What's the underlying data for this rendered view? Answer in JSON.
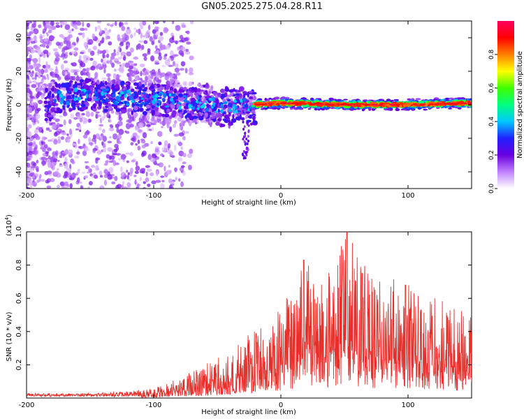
{
  "title": "GN05.2025.275.04.28.R11",
  "chart_data": [
    {
      "type": "heatmap",
      "xlabel": "Height of straight line (km)",
      "ylabel": "Frequency (Hz)",
      "xlim": [
        -200,
        150
      ],
      "ylim": [
        -50,
        50
      ],
      "xticks": [
        -200,
        -100,
        0,
        100
      ],
      "yticks": [
        -40,
        -20,
        0,
        20,
        40
      ],
      "grid": false,
      "colorbar": {
        "label": "Normalized spectral amplitude",
        "range": [
          0,
          1
        ],
        "ticks": [
          "0.0",
          "0.2",
          "0.4",
          "0.6",
          "0.8"
        ],
        "colors": [
          "#ffffff",
          "#c080ff",
          "#6a00e0",
          "#2020ff",
          "#00c8ff",
          "#00ff80",
          "#40ff00",
          "#ffff00",
          "#ff8000",
          "#ff0000",
          "#ff0060"
        ]
      },
      "ridge": [
        {
          "x": -180,
          "y": 4
        },
        {
          "x": -150,
          "y": 6
        },
        {
          "x": -120,
          "y": 4
        },
        {
          "x": -100,
          "y": 3
        },
        {
          "x": -80,
          "y": 2
        },
        {
          "x": -60,
          "y": 0
        },
        {
          "x": -40,
          "y": -1
        },
        {
          "x": -25,
          "y": -1
        },
        {
          "x": -20,
          "y": 0
        },
        {
          "x": 0,
          "y": 1
        },
        {
          "x": 50,
          "y": 0
        },
        {
          "x": 100,
          "y": 0
        },
        {
          "x": 150,
          "y": 1
        }
      ]
    },
    {
      "type": "line",
      "xlabel": "Height of straight line (km)",
      "ylabel": "SNR (10 * v/v)",
      "yscale_label": "(x10",
      "yscale_exp": "4",
      "yscale_close": ")",
      "xlim": [
        -200,
        150
      ],
      "ylim": [
        0,
        1.0
      ],
      "xticks": [
        -200,
        -100,
        0,
        100
      ],
      "yticks": [
        "0.2",
        "0.4",
        "0.6",
        "0.8",
        "1.0"
      ],
      "color": "#e8302a",
      "envelope": [
        {
          "x": -200,
          "y": 0.02
        },
        {
          "x": -160,
          "y": 0.02
        },
        {
          "x": -120,
          "y": 0.03
        },
        {
          "x": -100,
          "y": 0.06
        },
        {
          "x": -80,
          "y": 0.12
        },
        {
          "x": -60,
          "y": 0.2
        },
        {
          "x": -40,
          "y": 0.28
        },
        {
          "x": -20,
          "y": 0.42
        },
        {
          "x": 0,
          "y": 0.55
        },
        {
          "x": 18,
          "y": 0.85
        },
        {
          "x": 30,
          "y": 0.68
        },
        {
          "x": 52,
          "y": 1.0
        },
        {
          "x": 70,
          "y": 0.75
        },
        {
          "x": 100,
          "y": 0.7
        },
        {
          "x": 120,
          "y": 0.62
        },
        {
          "x": 150,
          "y": 0.5
        }
      ],
      "peaks": [
        {
          "x": 18,
          "y": 0.83
        },
        {
          "x": 52,
          "y": 1.0
        },
        {
          "x": 64,
          "y": 0.75
        },
        {
          "x": 98,
          "y": 0.68
        }
      ]
    }
  ]
}
